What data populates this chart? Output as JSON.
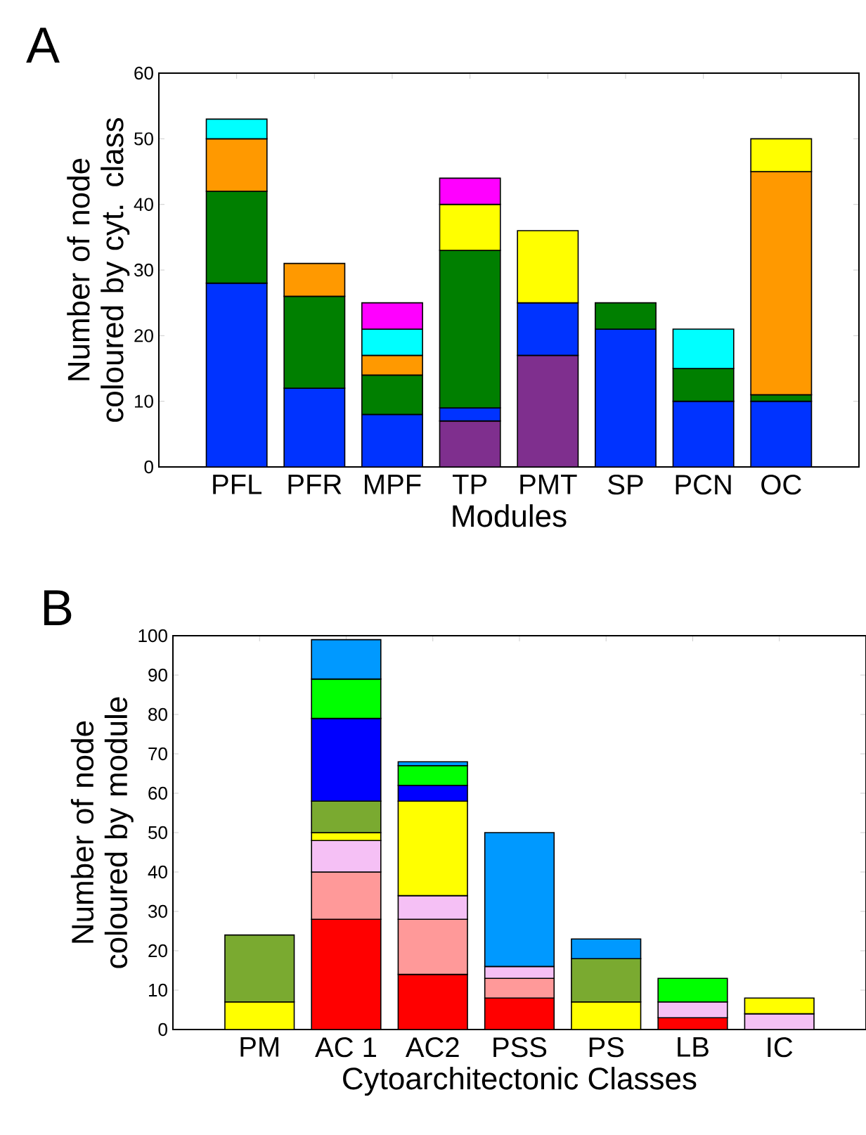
{
  "chart_data": [
    {
      "type": "bar",
      "title": "A",
      "xlabel": "Modules",
      "ylabel": "Number of node coloured by cyt. class",
      "stacked": true,
      "categories": [
        "PFL",
        "PFR",
        "MPF",
        "TP",
        "PMT",
        "SP",
        "PCN",
        "OC"
      ],
      "ylim": [
        0,
        60
      ],
      "yticks": [
        0,
        10,
        20,
        30,
        40,
        50,
        60
      ],
      "series": [
        {
          "color": "#7f2f8e",
          "values": [
            null,
            null,
            null,
            7,
            17,
            null,
            null,
            null
          ]
        },
        {
          "color": "#0033ff",
          "values": [
            28,
            12,
            8,
            2,
            8,
            21,
            10,
            10
          ]
        },
        {
          "color": "#007f00",
          "values": [
            14,
            14,
            6,
            24,
            null,
            4,
            5,
            1
          ]
        },
        {
          "color": "#ff9900",
          "values": [
            8,
            5,
            3,
            null,
            null,
            null,
            null,
            34
          ]
        },
        {
          "color": "#00ffff",
          "values": [
            3,
            null,
            4,
            null,
            null,
            null,
            6,
            null
          ]
        },
        {
          "color": "#ffff00",
          "values": [
            null,
            null,
            null,
            7,
            11,
            null,
            null,
            5
          ]
        },
        {
          "color": "#ff00ff",
          "values": [
            null,
            null,
            4,
            4,
            null,
            null,
            null,
            null
          ]
        }
      ]
    },
    {
      "type": "bar",
      "title": "B",
      "xlabel": "Cytoarchitectonic Classes",
      "ylabel": "Number of node coloured by module",
      "stacked": true,
      "categories": [
        "PM",
        "AC 1",
        "AC2",
        "PSS",
        "PS",
        "LB",
        "IC"
      ],
      "ylim": [
        0,
        100
      ],
      "yticks": [
        0,
        10,
        20,
        30,
        40,
        50,
        60,
        70,
        80,
        90,
        100
      ],
      "series": [
        {
          "color": "#ff0000",
          "values": [
            null,
            28,
            14,
            8,
            null,
            3,
            null
          ]
        },
        {
          "color": "#ff9999",
          "values": [
            null,
            12,
            14,
            5,
            null,
            null,
            null
          ]
        },
        {
          "color": "#f5c0f5",
          "values": [
            null,
            8,
            6,
            3,
            null,
            4,
            4
          ]
        },
        {
          "color": "#ffff00",
          "values": [
            7,
            2,
            24,
            null,
            7,
            null,
            4
          ]
        },
        {
          "color": "#7aaa30",
          "values": [
            17,
            8,
            null,
            null,
            11,
            null,
            null
          ]
        },
        {
          "color": "#0000ff",
          "values": [
            null,
            21,
            4,
            null,
            null,
            null,
            null
          ]
        },
        {
          "color": "#00ff00",
          "values": [
            null,
            10,
            5,
            null,
            null,
            6,
            null
          ]
        },
        {
          "color": "#0099ff",
          "values": [
            null,
            10,
            1,
            34,
            5,
            null,
            null
          ]
        }
      ]
    }
  ]
}
